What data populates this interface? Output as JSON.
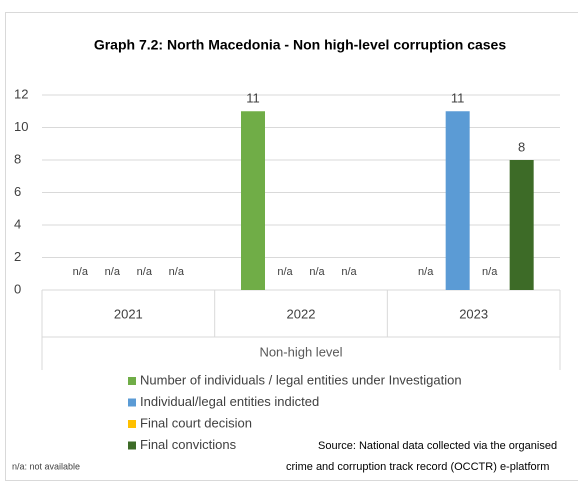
{
  "chart_data": {
    "type": "bar",
    "title": "Graph 7.2: North Macedonia - Non high-level corruption cases",
    "categories": [
      "2021",
      "2022",
      "2023"
    ],
    "group_label": "Non-high level",
    "series": [
      {
        "name": "Number of individuals / legal entities under Investigation",
        "color": "#70ad47",
        "values": [
          null,
          11,
          null
        ],
        "value_labels": [
          "n/a",
          "11",
          "n/a"
        ]
      },
      {
        "name": "Individual/legal entities indicted",
        "color": "#5b9bd5",
        "values": [
          null,
          null,
          11
        ],
        "value_labels": [
          "n/a",
          "n/a",
          "11"
        ]
      },
      {
        "name": "Final court decision",
        "color": "#ffc000",
        "values": [
          null,
          null,
          null
        ],
        "value_labels": [
          "n/a",
          "n/a",
          "n/a"
        ]
      },
      {
        "name": "Final convictions",
        "color": "#3d6b27",
        "values": [
          null,
          null,
          8
        ],
        "value_labels": [
          "n/a",
          "n/a",
          "8"
        ]
      }
    ],
    "ylim": [
      0,
      12
    ],
    "yticks": [
      0,
      2,
      4,
      6,
      8,
      10,
      12
    ],
    "grid": true,
    "footnote": "n/a: not available",
    "source": [
      "Source: National data collected via the organised",
      "crime and corruption track record (OCCTR) e-platform"
    ]
  }
}
